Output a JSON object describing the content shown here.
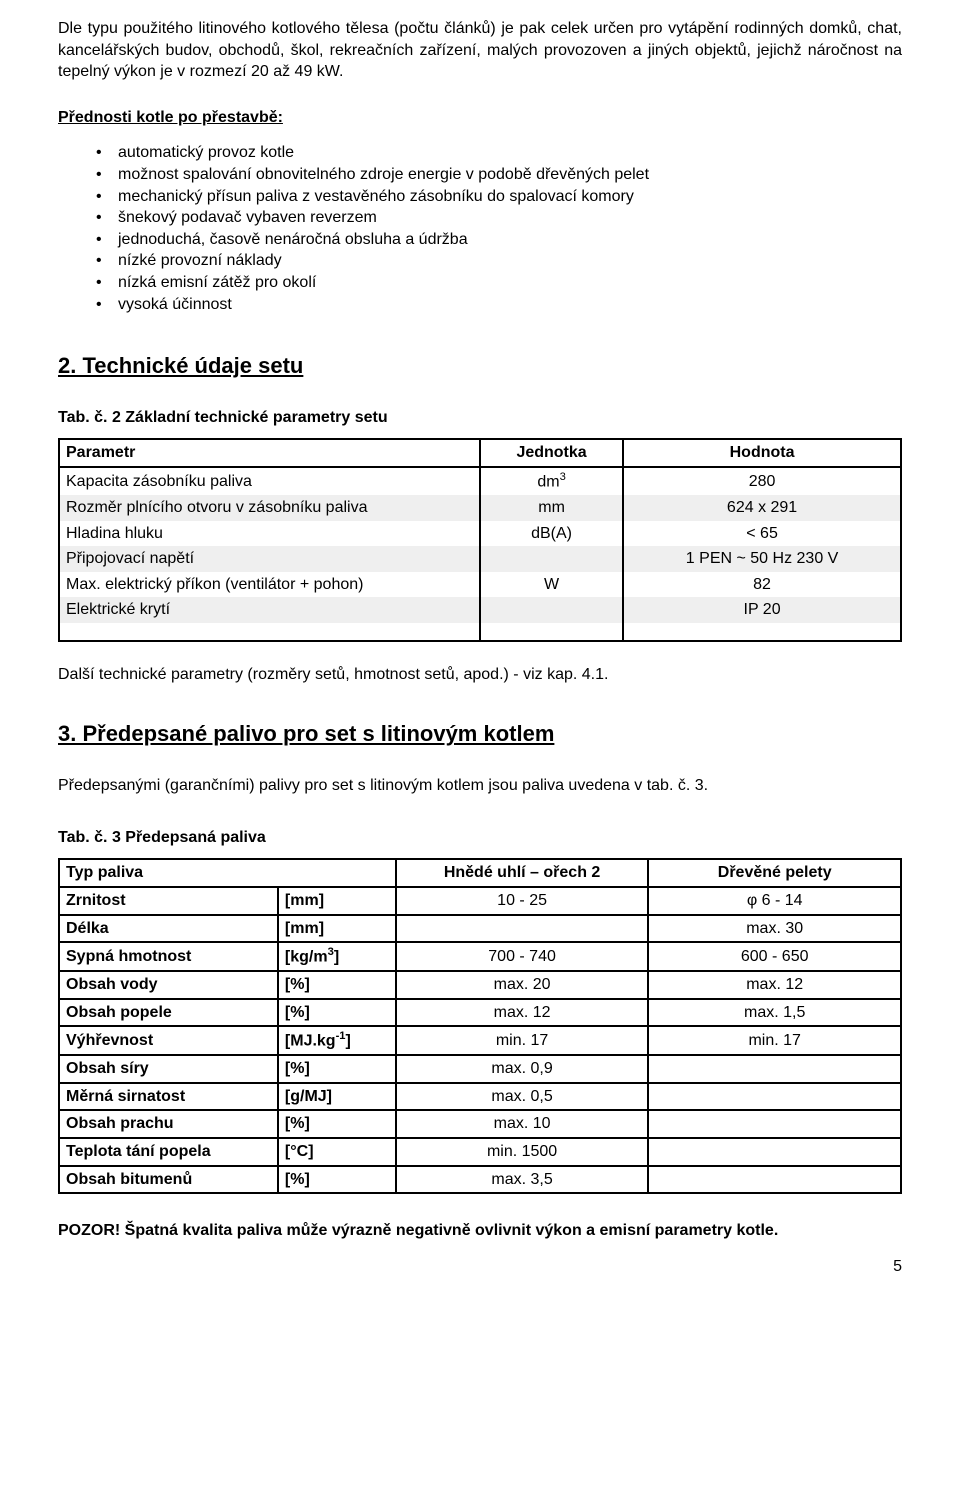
{
  "intro_paragraph": "Dle typu použitého litinového kotlového tělesa (počtu článků) je pak celek určen pro vytápění rodinných domků, chat, kancelářských budov, obchodů, škol, rekreačních zařízení, malých provozoven a jiných objektů, jejichž náročnost na tepelný výkon je v rozmezí 20 až 49 kW.",
  "advantages_heading": "Přednosti kotle po přestavbě:",
  "advantages": [
    "automatický provoz kotle",
    "možnost spalování obnovitelného zdroje energie v podobě dřevěných pelet",
    "mechanický přísun paliva z vestavěného zásobníku do spalovací komory",
    "šnekový podavač vybaven reverzem",
    "jednoduchá, časově nenáročná obsluha a údržba",
    "nízké provozní náklady",
    "nízká emisní zátěž pro okolí",
    "vysoká účinnost"
  ],
  "section2_heading": "2. Technické údaje setu",
  "tab2_caption": "Tab. č. 2  Základní technické parametry setu",
  "tech_table": {
    "headers": {
      "param": "Parametr",
      "unit": "Jednotka",
      "value": "Hodnota"
    },
    "rows": [
      {
        "label": "Kapacita zásobníku paliva",
        "unit_html": "dm<sup>3</sup>",
        "value": "280",
        "striped": false
      },
      {
        "label": "Rozměr plnícího otvoru v zásobníku paliva",
        "unit_html": "mm",
        "value": "624 x 291",
        "striped": true
      },
      {
        "label": "Hladina hluku",
        "unit_html": "dB(A)",
        "value": "< 65",
        "striped": false
      },
      {
        "label": "Připojovací napětí",
        "unit_html": "",
        "value": "1 PEN ~ 50 Hz   230 V",
        "striped": true
      },
      {
        "label": "Max. elektrický příkon (ventilátor + pohon)",
        "unit_html": "W",
        "value": "82",
        "striped": false
      },
      {
        "label": "Elektrické krytí",
        "unit_html": "",
        "value": "IP 20",
        "striped": true
      }
    ]
  },
  "further_params_note": "Další technické parametry (rozměry setů, hmotnost setů, apod.) - viz kap. 4.1.",
  "section3_heading": "3. Předepsané palivo pro set s litinovým kotlem",
  "section3_para": "Předepsanými (garančními) palivy pro set s litinovým kotlem jsou paliva uvedena v tab. č. 3.",
  "tab3_caption": "Tab. č. 3  Předepsaná paliva",
  "fuel_table": {
    "headers": {
      "type": "Typ paliva",
      "coal": "Hnědé uhlí – ořech 2",
      "pellets": "Dřevěné pelety"
    },
    "rows": [
      {
        "label": "Zrnitost",
        "unit": "[mm]",
        "coal": "10 - 25",
        "pellets_html": "&phi; 6 - 14"
      },
      {
        "label": "Délka",
        "unit": "[mm]",
        "coal": "",
        "pellets_html": "max. 30"
      },
      {
        "label": "Sypná hmotnost",
        "unit_html": "[kg/m<sup>3</sup>]",
        "coal": "700 - 740",
        "pellets_html": "600 - 650"
      },
      {
        "label": "Obsah vody",
        "unit": "[%]",
        "coal": "max. 20",
        "pellets_html": "max. 12"
      },
      {
        "label": "Obsah popele",
        "unit": "[%]",
        "coal": "max. 12",
        "pellets_html": "max. 1,5"
      },
      {
        "label": "Výhřevnost",
        "unit_html": "[MJ.kg<sup>-1</sup>]",
        "coal": "min. 17",
        "pellets_html": "min. 17"
      },
      {
        "label": "Obsah síry",
        "unit": "[%]",
        "coal": "max. 0,9",
        "pellets_html": ""
      },
      {
        "label": "Měrná sirnatost",
        "unit": "[g/MJ]",
        "coal": "max. 0,5",
        "pellets_html": ""
      },
      {
        "label": "Obsah prachu",
        "unit": "[%]",
        "coal": "max. 10",
        "pellets_html": ""
      },
      {
        "label": "Teplota tání popela",
        "unit": "[°C]",
        "coal": "min. 1500",
        "pellets_html": ""
      },
      {
        "label": "Obsah bitumenů",
        "unit": "[%]",
        "coal": "max. 3,5",
        "pellets_html": ""
      }
    ]
  },
  "warning": "POZOR! Špatná kvalita paliva může výrazně negativně ovlivnit výkon a emisní parametry kotle.",
  "page_number": "5"
}
